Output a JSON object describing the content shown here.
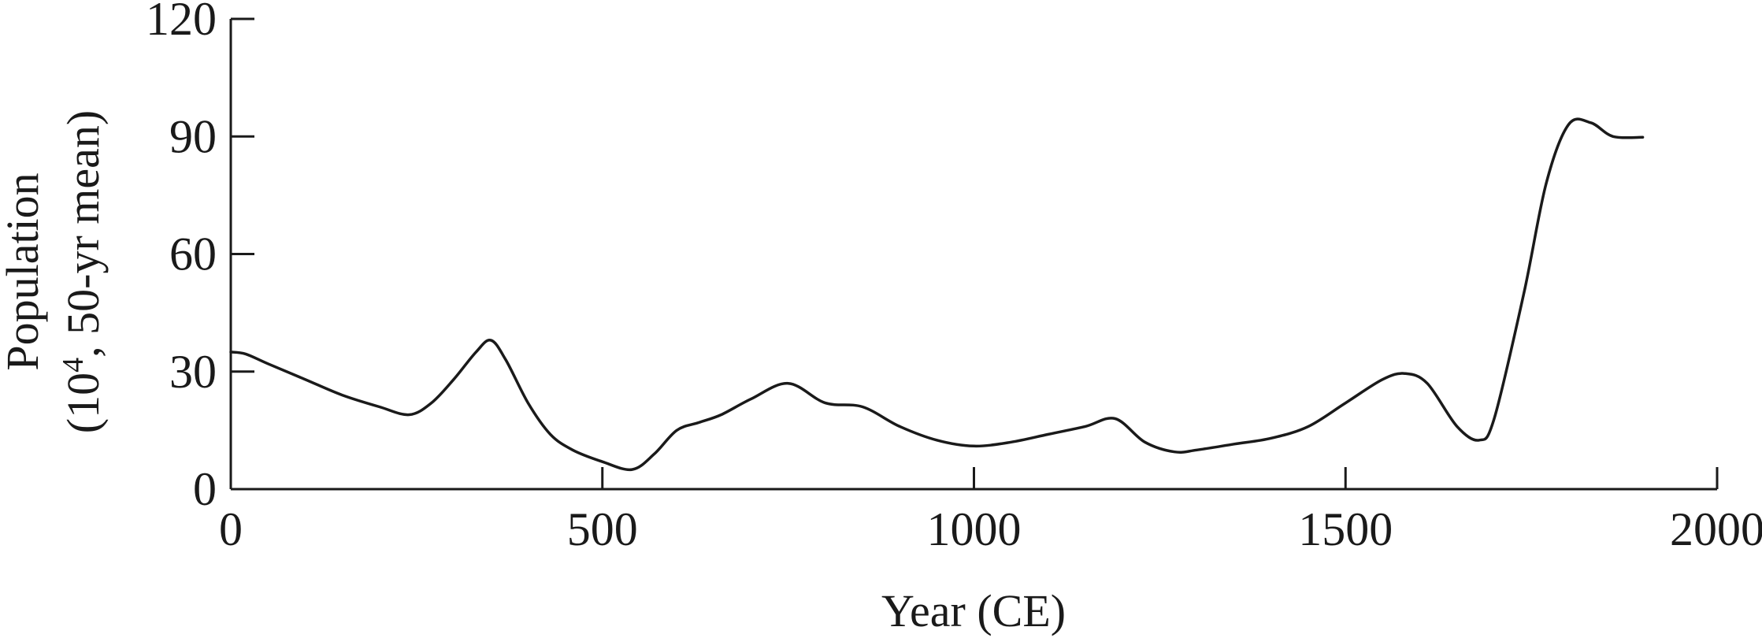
{
  "chart_data": {
    "type": "line",
    "xlabel": "Year (CE)",
    "ylabel": "Population",
    "ylabel_unit_prefix": "(10",
    "ylabel_unit_exponent": "4",
    "ylabel_unit_suffix": ", 50-yr mean)",
    "xlim": [
      0,
      2000
    ],
    "ylim": [
      0,
      120
    ],
    "xticks": [
      0,
      500,
      1000,
      1500,
      2000
    ],
    "yticks": [
      0,
      30,
      60,
      90,
      120
    ],
    "grid": false,
    "series": [
      {
        "x": [
          0,
          20,
          50,
          100,
          150,
          200,
          240,
          270,
          300,
          330,
          350,
          370,
          400,
          430,
          460,
          500,
          540,
          570,
          600,
          630,
          660,
          700,
          750,
          800,
          850,
          900,
          950,
          1000,
          1050,
          1100,
          1150,
          1190,
          1230,
          1270,
          1300,
          1350,
          1400,
          1450,
          1500,
          1550,
          1580,
          1610,
          1650,
          1680,
          1700,
          1740,
          1770,
          1800,
          1830,
          1860,
          1900
        ],
        "y": [
          35,
          34.5,
          32,
          28,
          24,
          21,
          19,
          22,
          28,
          35,
          38,
          33,
          22,
          14,
          10,
          7,
          5,
          9,
          15,
          17,
          19,
          23,
          27,
          22,
          21,
          16,
          12.5,
          11,
          12,
          14,
          16,
          18,
          12,
          9.5,
          10,
          11.5,
          13,
          16,
          22,
          28,
          29.5,
          27,
          16,
          12.5,
          18,
          50,
          78,
          93,
          93.5,
          90,
          89.8
        ]
      }
    ]
  }
}
